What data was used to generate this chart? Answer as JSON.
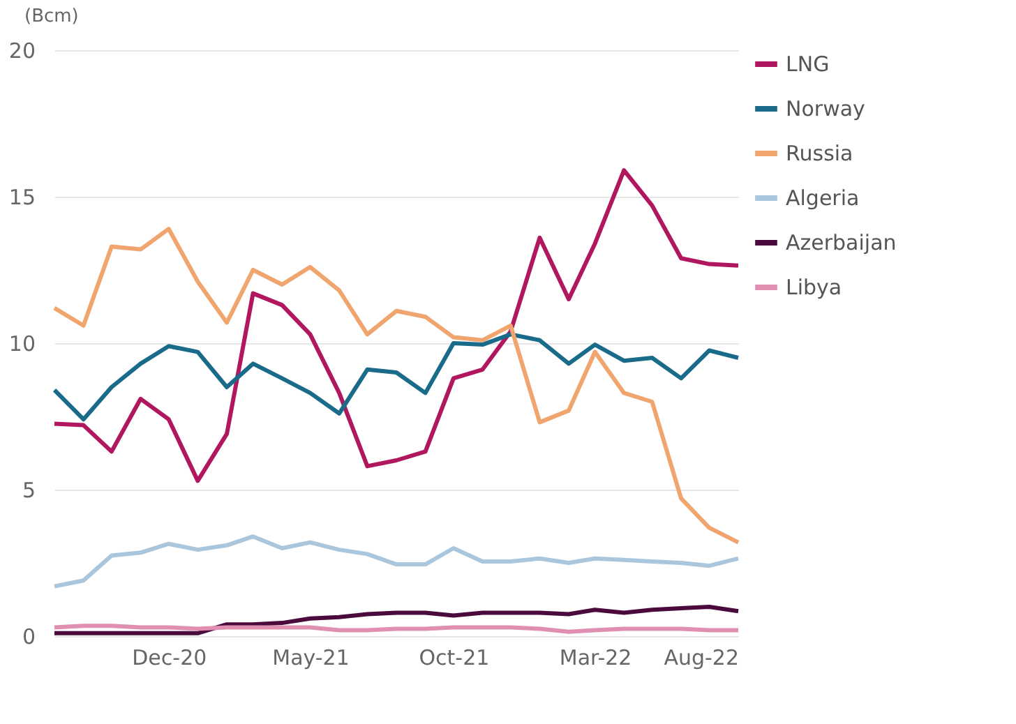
{
  "chart_data": {
    "type": "line",
    "ylabel": "(Bcm)",
    "x": [
      "2020-08",
      "2020-09",
      "2020-10",
      "2020-11",
      "2020-12",
      "2021-01",
      "2021-02",
      "2021-03",
      "2021-04",
      "2021-05",
      "2021-06",
      "2021-07",
      "2021-08",
      "2021-09",
      "2021-10",
      "2021-11",
      "2021-12",
      "2022-01",
      "2022-02",
      "2022-03",
      "2022-04",
      "2022-05",
      "2022-06",
      "2022-07",
      "2022-08"
    ],
    "series": [
      {
        "name": "LNG",
        "color": "#b0175f",
        "values": [
          7.25,
          7.2,
          6.3,
          8.1,
          7.4,
          5.3,
          6.9,
          11.7,
          11.3,
          10.3,
          8.3,
          5.8,
          6.0,
          6.3,
          8.8,
          9.1,
          10.4,
          13.6,
          11.5,
          13.4,
          15.9,
          14.7,
          12.9,
          12.7,
          12.65
        ]
      },
      {
        "name": "Norway",
        "color": "#1a6b8a",
        "values": [
          8.4,
          7.4,
          8.5,
          9.3,
          9.9,
          9.7,
          8.5,
          9.3,
          8.8,
          8.3,
          7.6,
          9.1,
          9.0,
          8.3,
          10.0,
          9.95,
          10.3,
          10.1,
          9.3,
          9.95,
          9.4,
          9.5,
          8.8,
          9.75,
          9.5
        ]
      },
      {
        "name": "Russia",
        "color": "#f0a46e",
        "values": [
          11.2,
          10.6,
          13.3,
          13.2,
          13.9,
          12.1,
          10.7,
          12.5,
          12.0,
          12.6,
          11.8,
          10.3,
          11.1,
          10.9,
          10.2,
          10.1,
          10.6,
          7.3,
          7.7,
          9.7,
          8.3,
          8.0,
          4.7,
          3.7,
          3.2
        ]
      },
      {
        "name": "Algeria",
        "color": "#a9c6dc",
        "values": [
          1.7,
          1.9,
          2.75,
          2.85,
          3.15,
          2.95,
          3.1,
          3.4,
          3.0,
          3.2,
          2.95,
          2.8,
          2.45,
          2.45,
          3.0,
          2.55,
          2.55,
          2.65,
          2.5,
          2.65,
          2.6,
          2.55,
          2.5,
          2.4,
          2.65
        ]
      },
      {
        "name": "Azerbaijan",
        "color": "#4a0a3c",
        "values": [
          0.1,
          0.1,
          0.1,
          0.1,
          0.1,
          0.1,
          0.4,
          0.4,
          0.45,
          0.6,
          0.65,
          0.75,
          0.8,
          0.8,
          0.7,
          0.8,
          0.8,
          0.8,
          0.75,
          0.9,
          0.8,
          0.9,
          0.95,
          1.0,
          0.85
        ]
      },
      {
        "name": "Libya",
        "color": "#e08fb0",
        "values": [
          0.3,
          0.35,
          0.35,
          0.3,
          0.3,
          0.25,
          0.3,
          0.3,
          0.3,
          0.3,
          0.2,
          0.2,
          0.25,
          0.25,
          0.3,
          0.3,
          0.3,
          0.25,
          0.15,
          0.2,
          0.25,
          0.25,
          0.25,
          0.2,
          0.2
        ]
      }
    ],
    "xlim": [
      "2020-08",
      "2022-08"
    ],
    "xticks": [
      {
        "value": "2020-12",
        "label": "Dec-20"
      },
      {
        "value": "2021-05",
        "label": "May-21"
      },
      {
        "value": "2021-10",
        "label": "Oct-21"
      },
      {
        "value": "2022-03",
        "label": "Mar-22"
      },
      {
        "value": "2022-08",
        "label": "Aug-22"
      }
    ],
    "ylim": [
      0,
      20
    ],
    "yticks": [
      0,
      5,
      10,
      15,
      20
    ],
    "grid": "y",
    "legend": "right"
  }
}
